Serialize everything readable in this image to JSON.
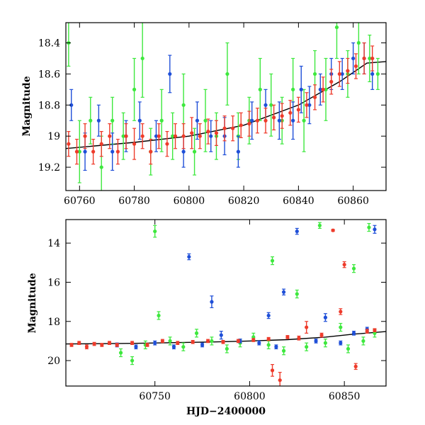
{
  "colors": {
    "series_blue": "#1f4fd8",
    "series_green": "#3ee83e",
    "series_red": "#ee3b2b",
    "model_line": "#000000"
  },
  "chart_data": [
    {
      "type": "scatter",
      "panel": "top",
      "title": "",
      "xlabel": "",
      "ylabel": "Magnitude",
      "xlim": [
        60755,
        60872
      ],
      "ylim": [
        19.35,
        18.27
      ],
      "y_inverted": true,
      "x_ticks": [
        60760,
        60780,
        60800,
        60820,
        60840,
        60860
      ],
      "y_ticks": [
        18.4,
        18.6,
        18.8,
        19,
        19.2
      ],
      "x_tick_labels": [
        "60760",
        "60780",
        "60800",
        "60820",
        "60840",
        "60860"
      ],
      "y_tick_labels": [
        "18.4",
        "18.6",
        "18.8",
        "19",
        "19.2"
      ],
      "grid": false,
      "legend": "none",
      "series": [
        {
          "color": "green",
          "x": [
            60756,
            60760,
            60764,
            60768,
            60772,
            60776,
            60780,
            60783,
            60786,
            60790,
            60794,
            60798,
            60802,
            60806,
            60810,
            60814,
            60818,
            60822,
            60826,
            60830,
            60834,
            60838,
            60842,
            60846,
            60850,
            60854,
            60858,
            60862,
            60866,
            60869
          ],
          "y": [
            18.4,
            19.1,
            18.9,
            19.2,
            18.9,
            19.0,
            18.7,
            18.5,
            19.1,
            18.9,
            19.0,
            18.8,
            19.1,
            18.9,
            19.0,
            18.6,
            19.0,
            18.9,
            18.7,
            18.8,
            18.9,
            18.7,
            18.9,
            18.6,
            18.7,
            18.3,
            18.6,
            18.4,
            18.5,
            18.6
          ],
          "err": [
            0.15,
            0.2,
            0.15,
            0.2,
            0.15,
            0.15,
            0.2,
            0.25,
            0.15,
            0.2,
            0.15,
            0.2,
            0.15,
            0.2,
            0.15,
            0.2,
            0.15,
            0.15,
            0.2,
            0.2,
            0.15,
            0.2,
            0.2,
            0.15,
            0.2,
            0.2,
            0.15,
            0.2,
            0.15,
            0.1
          ]
        },
        {
          "color": "blue",
          "x": [
            60757,
            60762,
            60767,
            60772,
            60777,
            60782,
            60788,
            60793,
            60798,
            60803,
            60808,
            60813,
            60818,
            60823,
            60828,
            60833,
            60838,
            60841,
            60844,
            60848,
            60852,
            60856,
            60860,
            60864,
            60867
          ],
          "y": [
            18.8,
            19.1,
            18.9,
            19.1,
            19.0,
            18.9,
            19.0,
            18.6,
            19.1,
            18.9,
            19.0,
            19.0,
            19.1,
            18.9,
            18.8,
            18.9,
            18.9,
            18.7,
            18.8,
            18.7,
            18.6,
            18.6,
            18.5,
            18.5,
            18.6
          ],
          "err": [
            0.1,
            0.12,
            0.1,
            0.12,
            0.1,
            0.12,
            0.1,
            0.12,
            0.1,
            0.12,
            0.1,
            0.12,
            0.1,
            0.12,
            0.1,
            0.12,
            0.12,
            0.15,
            0.12,
            0.1,
            0.1,
            0.1,
            0.1,
            0.1,
            0.1
          ]
        },
        {
          "color": "red",
          "x": [
            60756,
            60759,
            60762,
            60765,
            60768,
            60771,
            60774,
            60777,
            60780,
            60783,
            60786,
            60789,
            60792,
            60795,
            60798,
            60801,
            60804,
            60807,
            60810,
            60813,
            60816,
            60819,
            60822,
            60825,
            60828,
            60831,
            60834,
            60837,
            60840,
            60843,
            60846,
            60849,
            60852,
            60855,
            60858,
            60861,
            60864,
            60867
          ],
          "y": [
            19.05,
            19.1,
            19.0,
            19.1,
            19.05,
            19.0,
            19.1,
            19.0,
            19.05,
            19.0,
            19.1,
            19.0,
            19.05,
            19.0,
            19.0,
            18.98,
            19.0,
            18.97,
            18.98,
            18.95,
            18.95,
            18.93,
            18.92,
            18.9,
            18.9,
            18.88,
            18.87,
            18.85,
            18.83,
            18.8,
            18.75,
            18.7,
            18.65,
            18.6,
            18.58,
            18.55,
            18.5,
            18.5
          ],
          "err": [
            0.08,
            0.08,
            0.08,
            0.08,
            0.08,
            0.08,
            0.08,
            0.08,
            0.1,
            0.08,
            0.08,
            0.08,
            0.08,
            0.08,
            0.08,
            0.1,
            0.08,
            0.08,
            0.08,
            0.08,
            0.08,
            0.08,
            0.08,
            0.08,
            0.08,
            0.08,
            0.08,
            0.08,
            0.08,
            0.08,
            0.08,
            0.08,
            0.08,
            0.08,
            0.08,
            0.08,
            0.1,
            0.08
          ]
        }
      ],
      "model_curve": {
        "x": [
          60755,
          60780,
          60800,
          60820,
          60840,
          60855,
          60865,
          60872
        ],
        "y": [
          19.08,
          19.04,
          19.0,
          18.93,
          18.8,
          18.65,
          18.53,
          18.52
        ]
      }
    },
    {
      "type": "scatter",
      "panel": "bottom",
      "title": "",
      "xlabel": "HJD−2400000",
      "ylabel": "Magnitude",
      "xlim": [
        60703,
        60872
      ],
      "ylim": [
        21.3,
        12.8
      ],
      "y_inverted": true,
      "x_ticks": [
        60750,
        60800,
        60850
      ],
      "y_ticks": [
        14,
        16,
        18,
        20
      ],
      "x_tick_labels": [
        "60750",
        "60800",
        "60850"
      ],
      "y_tick_labels": [
        "14",
        "16",
        "18",
        "20"
      ],
      "grid": false,
      "legend": "none",
      "series": [
        {
          "color": "green",
          "x": [
            60732,
            60738,
            60745,
            60750,
            60752,
            60758,
            60765,
            60772,
            60780,
            60788,
            60795,
            60802,
            60810,
            60812,
            60818,
            60825,
            60830,
            60837,
            60840,
            60848,
            60852,
            60855,
            60860,
            60863,
            60866
          ],
          "y": [
            19.6,
            20.0,
            19.2,
            13.4,
            17.7,
            19.0,
            19.3,
            18.6,
            19.0,
            19.4,
            19.1,
            18.8,
            19.2,
            14.9,
            19.5,
            16.6,
            19.3,
            13.1,
            19.1,
            18.3,
            19.4,
            15.3,
            19.0,
            13.2,
            18.6
          ],
          "err": [
            0.2,
            0.2,
            0.2,
            0.3,
            0.2,
            0.2,
            0.2,
            0.2,
            0.2,
            0.2,
            0.2,
            0.2,
            0.2,
            0.2,
            0.2,
            0.2,
            0.2,
            0.15,
            0.2,
            0.2,
            0.2,
            0.2,
            0.2,
            0.2,
            0.2
          ]
        },
        {
          "color": "blue",
          "x": [
            60730,
            60740,
            60750,
            60760,
            60768,
            60775,
            60780,
            60785,
            60795,
            60805,
            60810,
            60814,
            60818,
            60825,
            60835,
            60840,
            60848,
            60855,
            60862,
            60866
          ],
          "y": [
            19.2,
            19.3,
            19.1,
            19.3,
            14.7,
            19.2,
            17.0,
            18.7,
            19.0,
            19.1,
            17.7,
            19.3,
            16.5,
            13.4,
            19.0,
            17.8,
            19.1,
            18.6,
            18.4,
            13.3
          ],
          "err": [
            0.1,
            0.1,
            0.1,
            0.1,
            0.15,
            0.1,
            0.3,
            0.2,
            0.1,
            0.1,
            0.15,
            0.1,
            0.15,
            0.15,
            0.1,
            0.2,
            0.1,
            0.1,
            0.1,
            0.2
          ]
        },
        {
          "color": "red",
          "x": [
            60706,
            60710,
            60714,
            60718,
            60722,
            60726,
            60730,
            60738,
            60746,
            60754,
            60762,
            60770,
            60778,
            60786,
            60794,
            60802,
            60810,
            60812,
            60816,
            60820,
            60826,
            60830,
            60838,
            60844,
            60848,
            60850,
            60856,
            60862,
            60866
          ],
          "y": [
            19.2,
            19.1,
            19.3,
            19.15,
            19.2,
            19.1,
            19.2,
            19.1,
            19.2,
            19.0,
            19.1,
            19.05,
            19.0,
            19.05,
            19.0,
            18.95,
            18.9,
            20.5,
            21.0,
            18.8,
            18.85,
            18.3,
            18.7,
            13.35,
            17.5,
            15.1,
            20.3,
            18.5,
            18.45
          ],
          "err": [
            0.08,
            0.08,
            0.1,
            0.08,
            0.08,
            0.08,
            0.08,
            0.08,
            0.08,
            0.08,
            0.08,
            0.08,
            0.08,
            0.08,
            0.08,
            0.08,
            0.08,
            0.3,
            0.4,
            0.08,
            0.1,
            0.3,
            0.1,
            0.05,
            0.15,
            0.15,
            0.15,
            0.1,
            0.08
          ]
        }
      ],
      "model_curve": {
        "x": [
          60703,
          60740,
          60780,
          60800,
          60820,
          60840,
          60855,
          60872
        ],
        "y": [
          19.15,
          19.12,
          19.05,
          19.0,
          18.93,
          18.8,
          18.65,
          18.52
        ]
      }
    }
  ]
}
